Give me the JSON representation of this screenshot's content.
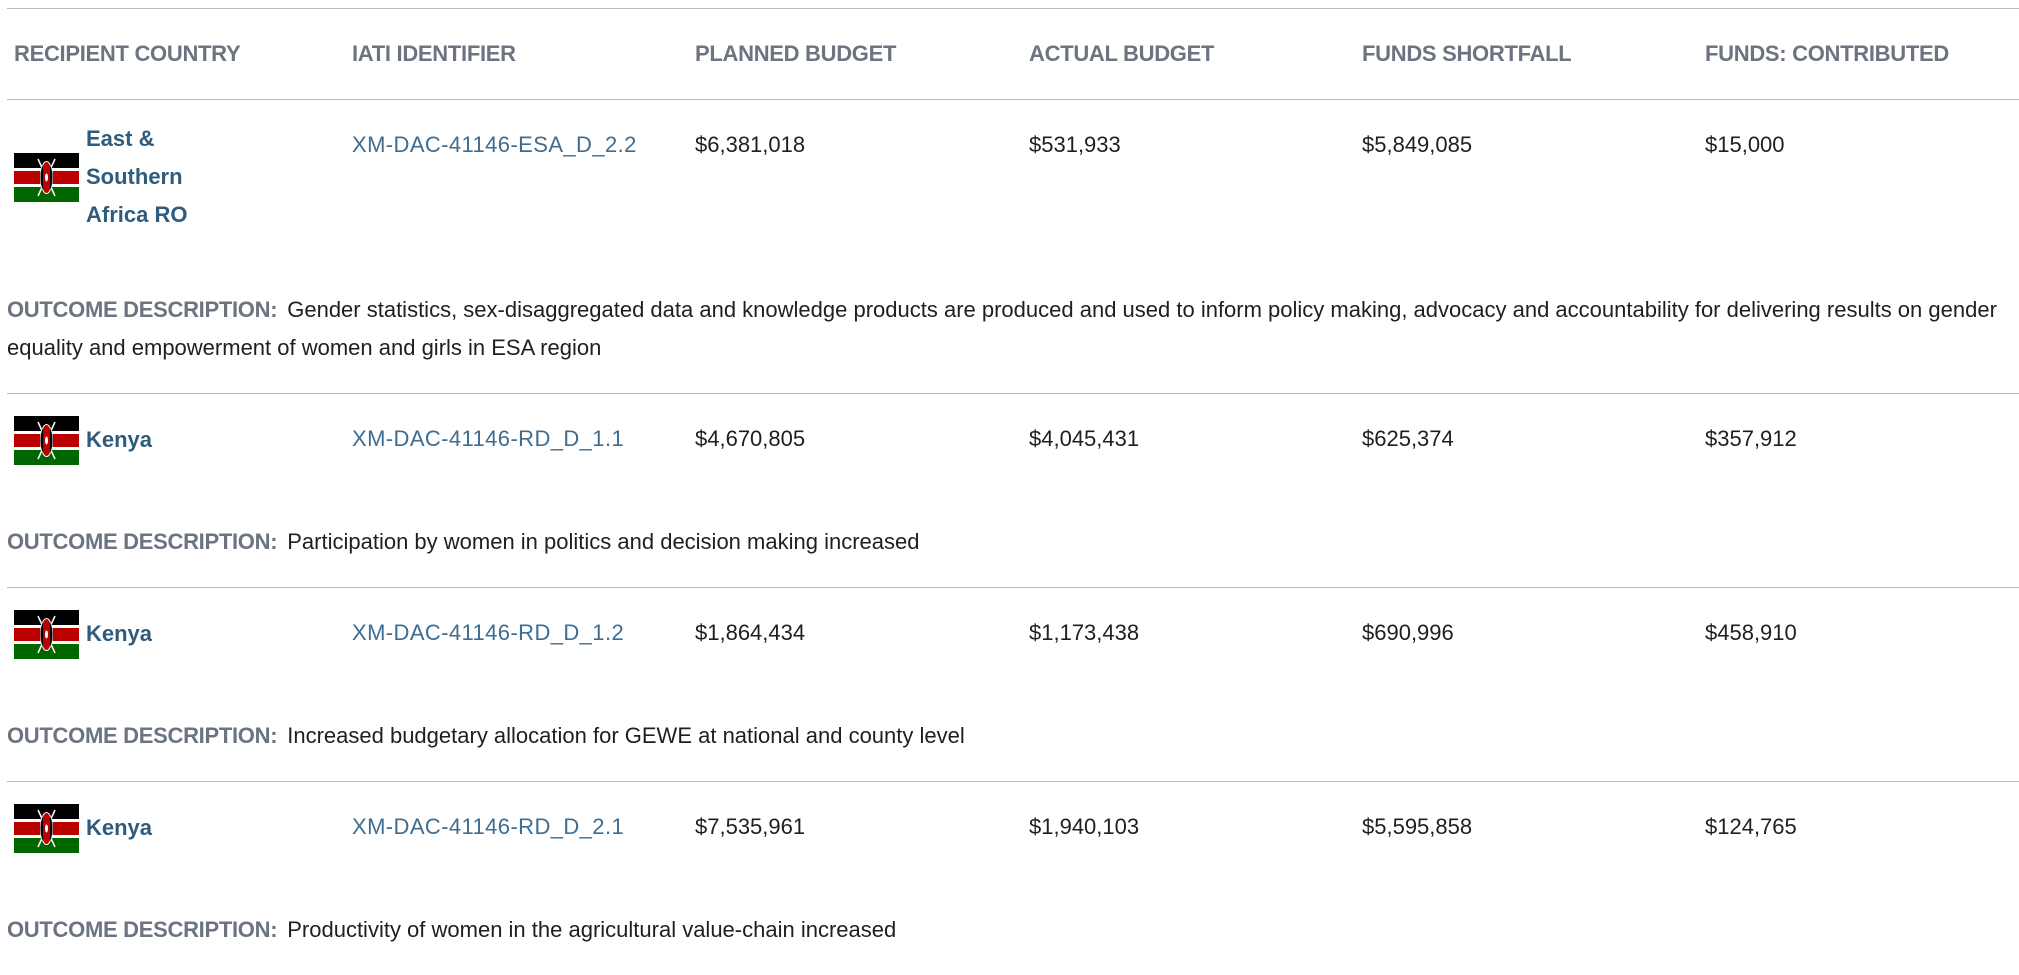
{
  "table": {
    "headers": [
      "RECIPIENT COUNTRY",
      "IATI IDENTIFIER",
      "PLANNED BUDGET",
      "ACTUAL BUDGET",
      "FUNDS SHORTFALL",
      "FUNDS: CONTRIBUTED"
    ],
    "outcome_label": "OUTCOME DESCRIPTION:",
    "rows": [
      {
        "country": "East & Southern Africa RO",
        "iati": "XM-DAC-41146-ESA_D_2.2",
        "planned": "$6,381,018",
        "actual": "$531,933",
        "shortfall": "$5,849,085",
        "contributed": "$15,000",
        "outcome": "Gender statistics, sex-disaggregated data and knowledge products are produced and used to inform policy making, advocacy and accountability for delivering results on gender equality and empowerment of women and girls in ESA region"
      },
      {
        "country": "Kenya",
        "iati": "XM-DAC-41146-RD_D_1.1",
        "planned": "$4,670,805",
        "actual": "$4,045,431",
        "shortfall": "$625,374",
        "contributed": "$357,912",
        "outcome": "Participation by women in politics and decision making increased"
      },
      {
        "country": "Kenya",
        "iati": "XM-DAC-41146-RD_D_1.2",
        "planned": "$1,864,434",
        "actual": "$1,173,438",
        "shortfall": "$690,996",
        "contributed": "$458,910",
        "outcome": "Increased budgetary allocation for GEWE at national and county level"
      },
      {
        "country": "Kenya",
        "iati": "XM-DAC-41146-RD_D_2.1",
        "planned": "$7,535,961",
        "actual": "$1,940,103",
        "shortfall": "$5,595,858",
        "contributed": "$124,765",
        "outcome": "Productivity of women in the agricultural value-chain increased"
      }
    ]
  }
}
